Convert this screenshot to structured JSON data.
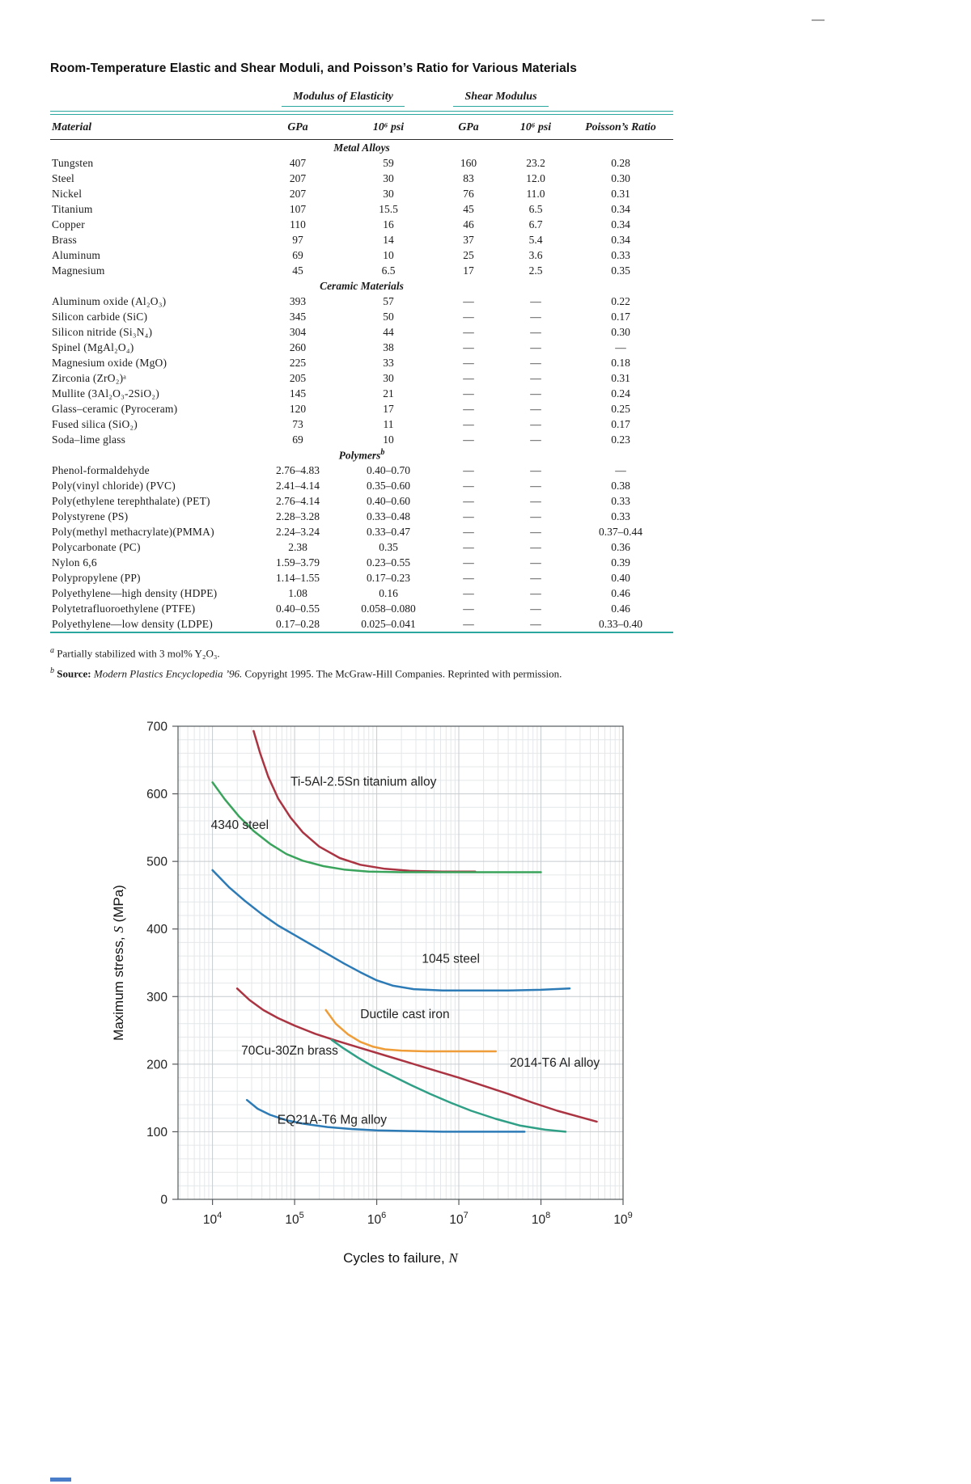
{
  "page": {
    "corner_mark": "—"
  },
  "colors": {
    "table_rule_teal": "#2aa79e",
    "chart_border": "#55595c",
    "grid_minor": "#e4e7e9",
    "grid_major": "#c7cccf"
  },
  "table": {
    "title": "Room-Temperature Elastic and Shear Moduli, and Poisson’s Ratio for Various Materials",
    "group_headers": [
      "Modulus of Elasticity",
      "Shear Modulus"
    ],
    "columns": [
      "Material",
      "GPa",
      "10⁶ psi",
      "GPa",
      "10⁶ psi",
      "Poisson’s Ratio"
    ],
    "sections": [
      {
        "name": "Metal Alloys",
        "rows": [
          [
            "Tungsten",
            "407",
            "59",
            "160",
            "23.2",
            "0.28"
          ],
          [
            "Steel",
            "207",
            "30",
            "83",
            "12.0",
            "0.30"
          ],
          [
            "Nickel",
            "207",
            "30",
            "76",
            "11.0",
            "0.31"
          ],
          [
            "Titanium",
            "107",
            "15.5",
            "45",
            "6.5",
            "0.34"
          ],
          [
            "Copper",
            "110",
            "16",
            "46",
            "6.7",
            "0.34"
          ],
          [
            "Brass",
            "97",
            "14",
            "37",
            "5.4",
            "0.34"
          ],
          [
            "Aluminum",
            "69",
            "10",
            "25",
            "3.6",
            "0.33"
          ],
          [
            "Magnesium",
            "45",
            "6.5",
            "17",
            "2.5",
            "0.35"
          ]
        ]
      },
      {
        "name": "Ceramic Materials",
        "rows": [
          [
            "Aluminum oxide (Al₂O₃)",
            "393",
            "57",
            "—",
            "—",
            "0.22"
          ],
          [
            "Silicon carbide (SiC)",
            "345",
            "50",
            "—",
            "—",
            "0.17"
          ],
          [
            "Silicon nitride (Si₃N₄)",
            "304",
            "44",
            "—",
            "—",
            "0.30"
          ],
          [
            "Spinel (MgAl₂O₄)",
            "260",
            "38",
            "—",
            "—",
            "—"
          ],
          [
            "Magnesium oxide (MgO)",
            "225",
            "33",
            "—",
            "—",
            "0.18"
          ],
          [
            "Zirconia (ZrO₂)ᵃ",
            "205",
            "30",
            "—",
            "—",
            "0.31"
          ],
          [
            "Mullite (3Al₂O₃-2SiO₂)",
            "145",
            "21",
            "—",
            "—",
            "0.24"
          ],
          [
            "Glass–ceramic (Pyroceram)",
            "120",
            "17",
            "—",
            "—",
            "0.25"
          ],
          [
            "Fused silica (SiO₂)",
            "73",
            "11",
            "—",
            "—",
            "0.17"
          ],
          [
            "Soda–lime glass",
            "69",
            "10",
            "—",
            "—",
            "0.23"
          ]
        ]
      },
      {
        "name": "Polymers",
        "sup": "b",
        "rows": [
          [
            "Phenol-formaldehyde",
            "2.76–4.83",
            "0.40–0.70",
            "—",
            "—",
            "—"
          ],
          [
            "Poly(vinyl chloride) (PVC)",
            "2.41–4.14",
            "0.35–0.60",
            "—",
            "—",
            "0.38"
          ],
          [
            "Poly(ethylene terephthalate) (PET)",
            "2.76–4.14",
            "0.40–0.60",
            "—",
            "—",
            "0.33"
          ],
          [
            "Polystyrene (PS)",
            "2.28–3.28",
            "0.33–0.48",
            "—",
            "—",
            "0.33"
          ],
          [
            "Poly(methyl methacrylate)(PMMA)",
            "2.24–3.24",
            "0.33–0.47",
            "—",
            "—",
            "0.37–0.44"
          ],
          [
            "Polycarbonate (PC)",
            "2.38",
            "0.35",
            "—",
            "—",
            "0.36"
          ],
          [
            "Nylon 6,6",
            "1.59–3.79",
            "0.23–0.55",
            "—",
            "—",
            "0.39"
          ],
          [
            "Polypropylene (PP)",
            "1.14–1.55",
            "0.17–0.23",
            "—",
            "—",
            "0.40"
          ],
          [
            "Polyethylene—high density (HDPE)",
            "1.08",
            "0.16",
            "—",
            "—",
            "0.46"
          ],
          [
            "Polytetrafluoroethylene (PTFE)",
            "0.40–0.55",
            "0.058–0.080",
            "—",
            "—",
            "0.46"
          ],
          [
            "Polyethylene—low density (LDPE)",
            "0.17–0.28",
            "0.025–0.041",
            "—",
            "—",
            "0.33–0.40"
          ]
        ]
      }
    ],
    "footnote_a": {
      "marker": "a",
      "text": "Partially stabilized with 3 mol% Y₂O₃."
    },
    "footnote_b": {
      "marker": "b",
      "label": "Source:",
      "source": "Modern Plastics Encyclopedia ’96.",
      "rest": "Copyright 1995. The McGraw-Hill Companies. Reprinted with permission."
    }
  },
  "chart_data": {
    "type": "line",
    "title": "",
    "xlabel_parts": [
      "Cycles to failure, ",
      "N"
    ],
    "ylabel_parts": [
      "Maximum stress, ",
      "S",
      " (MPa)"
    ],
    "x_scale": "log10",
    "xlog_range": [
      3.58,
      9.0
    ],
    "x_tick_exponents": [
      4,
      5,
      6,
      7,
      8,
      9
    ],
    "ylim": [
      0,
      700
    ],
    "y_tick_step": 100,
    "y_minor_step": 20,
    "grid": "on",
    "series": [
      {
        "id": "ti-5al-2-5sn-titanium",
        "name": "Ti-5Al-2.5Sn titanium alloy",
        "color": "#ab3442",
        "points": [
          [
            4.5,
            693
          ],
          [
            4.58,
            660
          ],
          [
            4.68,
            625
          ],
          [
            4.8,
            593
          ],
          [
            4.95,
            565
          ],
          [
            5.1,
            543
          ],
          [
            5.3,
            522
          ],
          [
            5.55,
            505
          ],
          [
            5.8,
            495
          ],
          [
            6.1,
            489
          ],
          [
            6.4,
            486
          ],
          [
            6.8,
            485
          ],
          [
            7.2,
            485
          ]
        ],
        "label_at": [
          4.95,
          612
        ]
      },
      {
        "id": "4340-steel",
        "name": "4340 steel",
        "color": "#3aa35c",
        "points": [
          [
            4.0,
            617
          ],
          [
            4.15,
            592
          ],
          [
            4.32,
            567
          ],
          [
            4.5,
            545
          ],
          [
            4.7,
            526
          ],
          [
            4.9,
            511
          ],
          [
            5.1,
            501
          ],
          [
            5.35,
            493
          ],
          [
            5.6,
            488
          ],
          [
            5.9,
            485
          ],
          [
            6.3,
            484
          ],
          [
            7.0,
            484
          ],
          [
            8.0,
            484
          ]
        ],
        "label_at": [
          3.98,
          548
        ]
      },
      {
        "id": "1045-steel",
        "name": "1045 steel",
        "color": "#2d7bb6",
        "points": [
          [
            4.0,
            487
          ],
          [
            4.2,
            462
          ],
          [
            4.4,
            441
          ],
          [
            4.6,
            422
          ],
          [
            4.8,
            405
          ],
          [
            5.0,
            391
          ],
          [
            5.2,
            377
          ],
          [
            5.4,
            363
          ],
          [
            5.6,
            349
          ],
          [
            5.8,
            336
          ],
          [
            6.0,
            324
          ],
          [
            6.2,
            316
          ],
          [
            6.45,
            311
          ],
          [
            6.8,
            309
          ],
          [
            7.2,
            309
          ],
          [
            7.6,
            309
          ],
          [
            8.0,
            310
          ],
          [
            8.35,
            312
          ]
        ],
        "label_at": [
          6.55,
          350
        ]
      },
      {
        "id": "ductile-cast-iron",
        "name": "Ductile cast iron",
        "color": "#ef9d38",
        "points": [
          [
            5.38,
            280
          ],
          [
            5.5,
            260
          ],
          [
            5.65,
            244
          ],
          [
            5.8,
            233
          ],
          [
            5.95,
            226
          ],
          [
            6.1,
            222
          ],
          [
            6.3,
            220
          ],
          [
            6.6,
            219
          ],
          [
            7.0,
            219
          ],
          [
            7.45,
            219
          ]
        ],
        "label_at": [
          5.8,
          268
        ]
      },
      {
        "id": "2014-t6-al",
        "name": "2014-T6 Al alloy",
        "color": "#ab3442",
        "points": [
          [
            4.3,
            312
          ],
          [
            4.45,
            295
          ],
          [
            4.62,
            280
          ],
          [
            4.8,
            268
          ],
          [
            5.0,
            257
          ],
          [
            5.25,
            245
          ],
          [
            5.5,
            235
          ],
          [
            5.8,
            224
          ],
          [
            6.1,
            213
          ],
          [
            6.4,
            202
          ],
          [
            6.7,
            191
          ],
          [
            7.0,
            180
          ],
          [
            7.3,
            168
          ],
          [
            7.6,
            156
          ],
          [
            7.9,
            143
          ],
          [
            8.2,
            131
          ],
          [
            8.5,
            121
          ],
          [
            8.68,
            115
          ]
        ],
        "label_at": [
          7.62,
          196
        ]
      },
      {
        "id": "70cu-30zn-brass",
        "name": "70Cu-30Zn brass",
        "color": "#2f9f85",
        "points": [
          [
            5.45,
            236
          ],
          [
            5.6,
            223
          ],
          [
            5.78,
            209
          ],
          [
            5.95,
            197
          ],
          [
            6.15,
            185
          ],
          [
            6.4,
            170
          ],
          [
            6.65,
            156
          ],
          [
            6.9,
            143
          ],
          [
            7.15,
            131
          ],
          [
            7.45,
            119
          ],
          [
            7.75,
            109
          ],
          [
            8.05,
            103
          ],
          [
            8.3,
            100
          ]
        ],
        "label_at": [
          4.35,
          214
        ]
      },
      {
        "id": "eq21a-t6-mg",
        "name": "EQ21A-T6 Mg alloy",
        "color": "#2d7bb6",
        "points": [
          [
            4.42,
            147
          ],
          [
            4.55,
            134
          ],
          [
            4.7,
            125
          ],
          [
            4.9,
            117
          ],
          [
            5.1,
            112
          ],
          [
            5.4,
            107
          ],
          [
            5.7,
            104
          ],
          [
            6.0,
            102
          ],
          [
            6.4,
            101
          ],
          [
            6.8,
            100
          ],
          [
            7.2,
            100
          ],
          [
            7.8,
            100
          ]
        ],
        "label_at": [
          4.79,
          112
        ]
      }
    ]
  }
}
